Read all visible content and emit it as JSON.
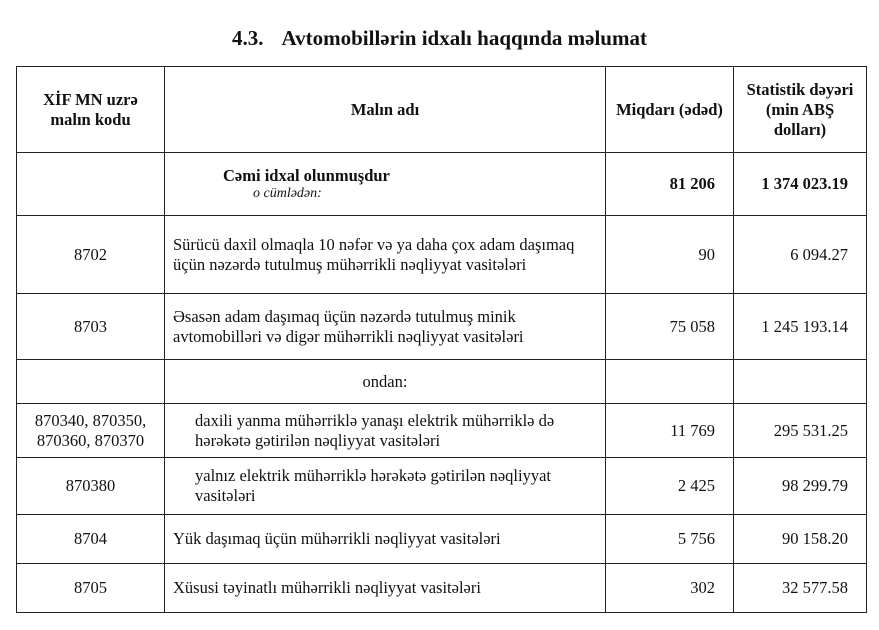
{
  "title": {
    "number": "4.3.",
    "text": "Avtomobillərin idxalı haqqında məlumat"
  },
  "headers": {
    "code": "XİF MN uzrə malın kodu",
    "name": "Malın adı",
    "quantity": "Miqdarı (ədəd)",
    "value": "Statistik dəyəri (min ABŞ dolları)"
  },
  "total": {
    "label": "Cəmi idxal olunmuşdur",
    "sublabel": "o cümlədən:",
    "quantity": "81 206",
    "value": "1 374 023.19"
  },
  "rows": [
    {
      "code": "8702",
      "name": "Sürücü daxil olmaqla 10 nəfər və ya daha çox adam daşımaq üçün nəzərdə tutulmuş mühərrikli nəqliyyat vasitələri",
      "quantity": "90",
      "value": "6 094.27"
    },
    {
      "code": "8703",
      "name": "Əsasən adam daşımaq üçün nəzərdə tutulmuş minik avtomobilləri və digər mühərrikli nəqliyyat vasitələri",
      "quantity": "75 058",
      "value": "1 245 193.14"
    }
  ],
  "ondan": "ondan:",
  "subrows": [
    {
      "code": "870340, 870350, 870360, 870370",
      "name": "daxili yanma mühərriklə yanaşı elektrik mühərriklə də hərəkətə gətirilən nəqliyyat vasitələri",
      "quantity": "11 769",
      "value": "295 531.25"
    },
    {
      "code": "870380",
      "name": "yalnız elektrik mühərriklə hərəkətə gətirilən nəqliyyat vasitələri",
      "quantity": "2 425",
      "value": "98 299.79"
    }
  ],
  "rows2": [
    {
      "code": "8704",
      "name": "Yük daşımaq üçün mühərrikli nəqliyyat vasitələri",
      "quantity": "5 756",
      "value": "90 158.20"
    },
    {
      "code": "8705",
      "name": "Xüsusi təyinatlı mühərrikli nəqliyyat vasitələri",
      "quantity": "302",
      "value": "32 577.58"
    }
  ]
}
